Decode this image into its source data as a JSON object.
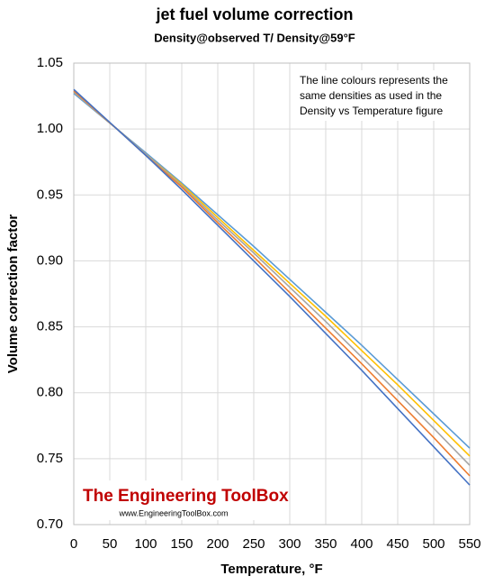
{
  "chart_data": {
    "type": "line",
    "title": "jet fuel volume correction",
    "subtitle": "Density@observed T/ Density@59°F",
    "x_label": "Temperature, °F",
    "y_label": "Volume correction factor",
    "annotation": [
      "The line colours represents the",
      "same densities as used in the",
      "Density vs Temperature figure"
    ],
    "watermark": [
      "The Engineering ToolBox",
      "www.EngineeringToolBox.com"
    ],
    "x": [
      0,
      60,
      100,
      150,
      200,
      250,
      300,
      350,
      400,
      450,
      500,
      550
    ],
    "series": [
      {
        "color": "#5b9bd5",
        "values": [
          1.027,
          1,
          0.982,
          0.959,
          0.935,
          0.911,
          0.886,
          0.861,
          0.836,
          0.81,
          0.784,
          0.758
        ]
      },
      {
        "color": "#ffc000",
        "values": [
          1.028,
          1,
          0.981,
          0.958,
          0.933,
          0.908,
          0.883,
          0.858,
          0.832,
          0.806,
          0.779,
          0.752
        ]
      },
      {
        "color": "#a5a5a5",
        "values": [
          1.028,
          1,
          0.981,
          0.957,
          0.931,
          0.906,
          0.88,
          0.854,
          0.827,
          0.8,
          0.773,
          0.745
        ]
      },
      {
        "color": "#ed7d31",
        "values": [
          1.029,
          1,
          0.98,
          0.956,
          0.929,
          0.903,
          0.876,
          0.849,
          0.822,
          0.794,
          0.766,
          0.737
        ]
      },
      {
        "color": "#4472c4",
        "values": [
          1.03,
          1,
          0.98,
          0.954,
          0.927,
          0.9,
          0.873,
          0.845,
          0.817,
          0.788,
          0.759,
          0.73
        ]
      }
    ],
    "xlim": [
      0,
      550
    ],
    "xticks": [
      0,
      50,
      100,
      150,
      200,
      250,
      300,
      350,
      400,
      450,
      500,
      550
    ],
    "ylim": [
      0.7,
      1.05
    ],
    "yticks": [
      {
        "value": 0.7,
        "label": "0.70"
      },
      0.75,
      {
        "value": 0.8,
        "label": "0.80"
      },
      0.85,
      {
        "value": 0.9,
        "label": "0.90"
      },
      0.95,
      {
        "value": 1.0,
        "label": "1.00"
      },
      1.05
    ],
    "grid": true
  }
}
